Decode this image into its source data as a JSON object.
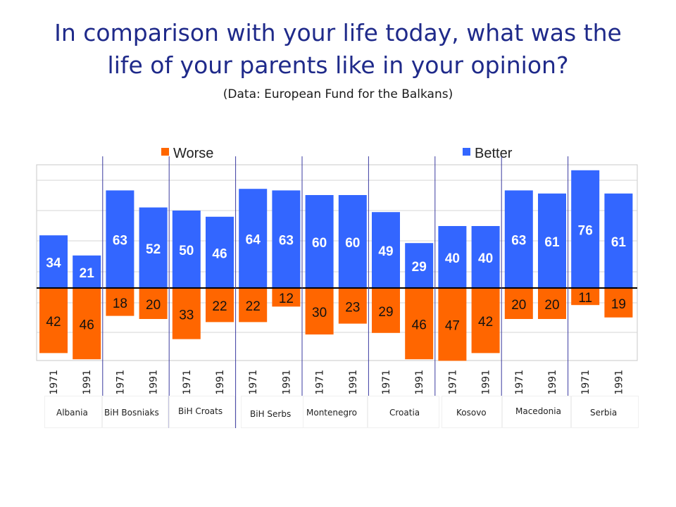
{
  "title_line1": "In comparison with your life today, what was the",
  "title_line2": "life of your parents like in your opinion?",
  "subtitle": "(Data:  European Fund for the Balkans)",
  "colors": {
    "worse": "#ff6600",
    "better": "#3366ff",
    "title": "#1f2a8a",
    "divider": "#3b3ba0"
  },
  "chart_data": {
    "type": "bar",
    "legend": [
      "Worse",
      "Better"
    ],
    "legend_placement": "top",
    "grid": true,
    "groups": [
      "Albania",
      "BiH Bosniaks",
      "BiH Croats",
      "BiH Serbs",
      "Montenegro",
      "Croatia",
      "Kosovo",
      "Macedonia",
      "Serbia"
    ],
    "categories": [
      "1971",
      "1991",
      "1971",
      "1991",
      "1971",
      "1991",
      "1971",
      "1991",
      "1971",
      "1991",
      "1971",
      "1991",
      "1971",
      "1991",
      "1971",
      "1991",
      "1971",
      "1991"
    ],
    "series": [
      {
        "name": "Better",
        "values": [
          34,
          21,
          63,
          52,
          50,
          46,
          64,
          63,
          60,
          60,
          49,
          29,
          40,
          40,
          63,
          61,
          76,
          61
        ]
      },
      {
        "name": "Worse",
        "values": [
          42,
          46,
          18,
          20,
          33,
          22,
          22,
          12,
          30,
          23,
          29,
          46,
          47,
          42,
          20,
          20,
          11,
          19
        ]
      }
    ]
  }
}
